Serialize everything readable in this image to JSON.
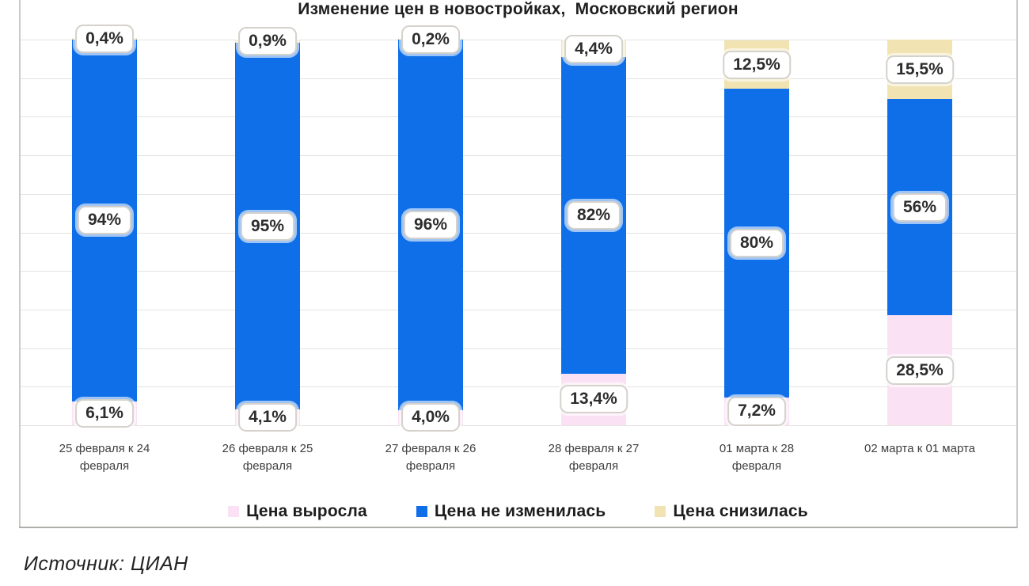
{
  "source_note": "Источник: ЦИАН",
  "chart_data": {
    "type": "bar",
    "stacked": true,
    "title": "Изменение цен в новостройках,  Московский регион",
    "unit": "%",
    "ylim": [
      0,
      100
    ],
    "grid": "horizontal gridlines every 10%, no y-axis tick labels",
    "legend_position": "bottom",
    "value_format": "percent with comma decimal separator",
    "categories": [
      "25 февраля к 24 февраля",
      "26 февраля к 25 февраля",
      "27 февраля к 26 февраля",
      "28 февраля к 27 февраля",
      "01 марта к 28 февраля",
      "02 марта к 01 марта"
    ],
    "series": [
      {
        "key": "price-up",
        "name": "Цена выросла",
        "color": "#fae2f4",
        "values": [
          6.1,
          4.1,
          4.0,
          13.4,
          7.2,
          28.5
        ],
        "labels": [
          "6,1%",
          "4,1%",
          "4,0%",
          "13,4%",
          "7,2%",
          "28,5%"
        ]
      },
      {
        "key": "price-unchanged",
        "name": "Цена не изменилась",
        "color": "#0f6fe8",
        "values": [
          94,
          95,
          96,
          82,
          80,
          56
        ],
        "labels": [
          "94%",
          "95%",
          "96%",
          "82%",
          "80%",
          "56%"
        ]
      },
      {
        "key": "price-down",
        "name": "Цена снизилась",
        "color": "#f1e3b2",
        "values": [
          0.4,
          0.9,
          0.2,
          4.4,
          12.5,
          15.5
        ],
        "labels": [
          "0,4%",
          "0,9%",
          "0,2%",
          "4,4%",
          "12,5%",
          "15,5%"
        ]
      }
    ]
  }
}
